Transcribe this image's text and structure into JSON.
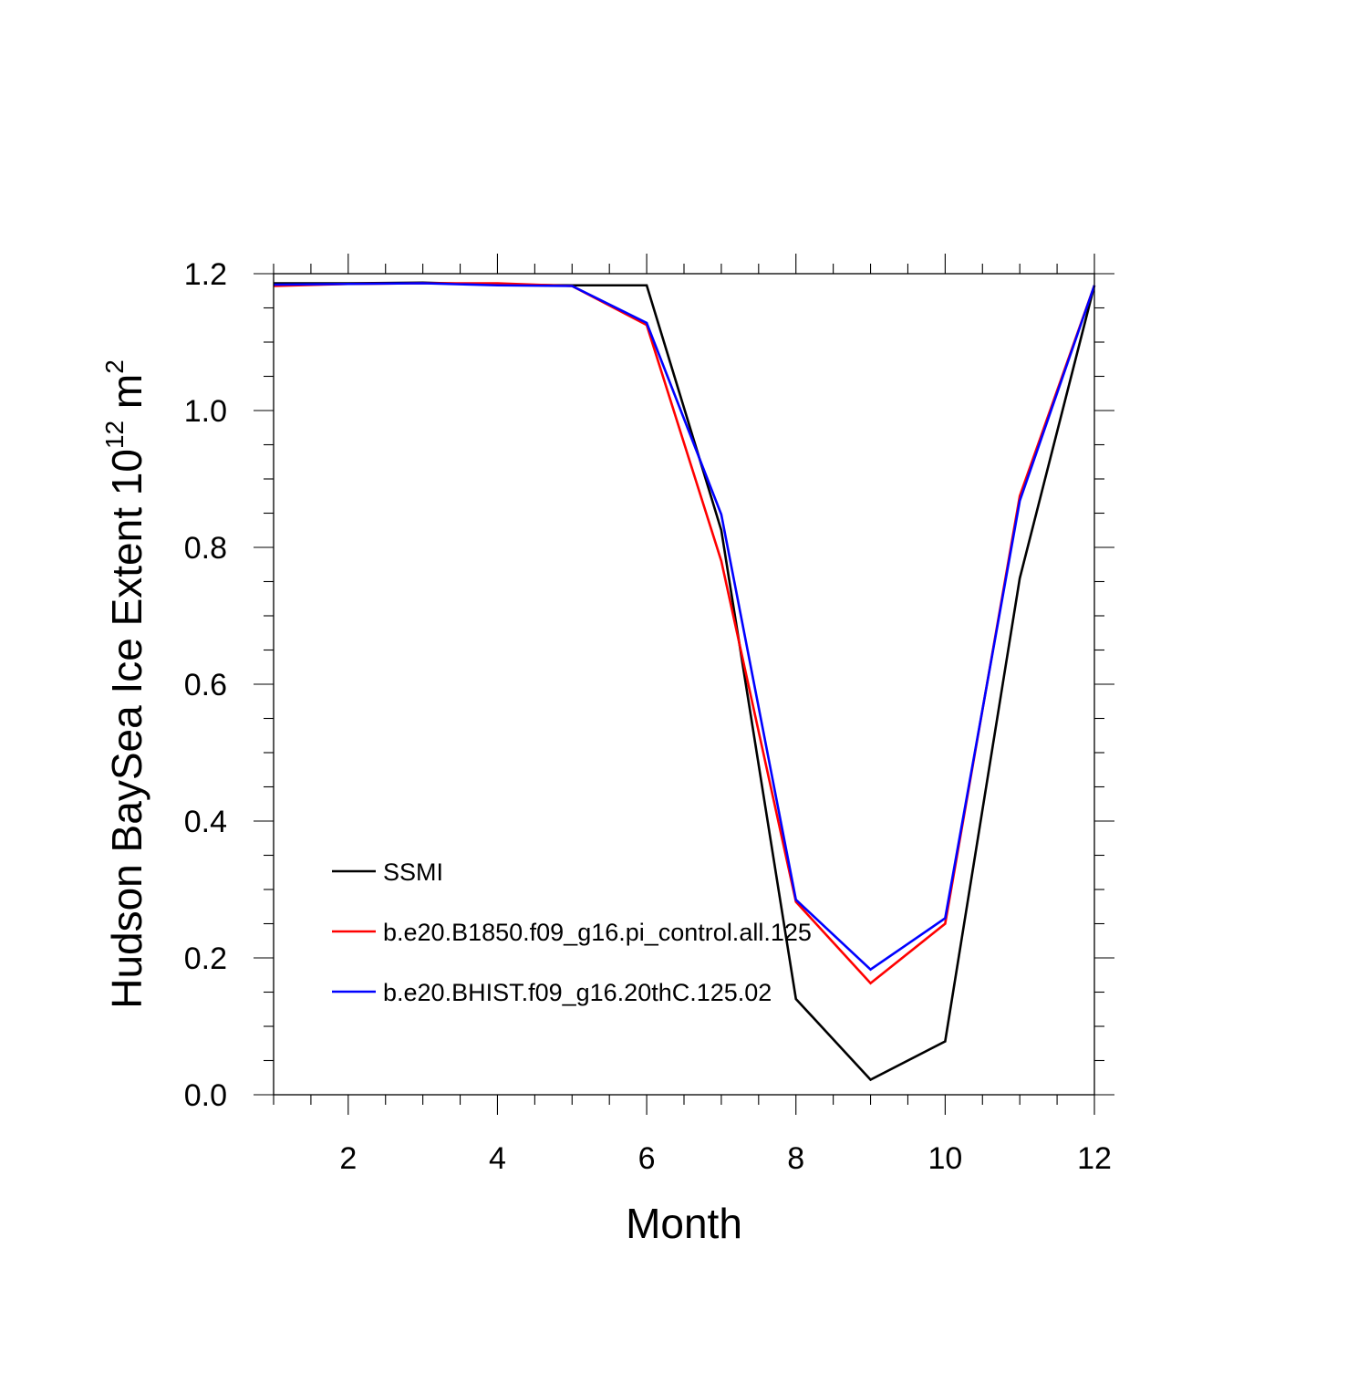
{
  "chart_data": {
    "type": "line",
    "xlabel": "Month",
    "ylabel": {
      "text_before": "Hudson BaySea Ice Extent 10",
      "exponent": "12",
      "text_middle": " m",
      "unit_exponent": "2"
    },
    "xlim": [
      1,
      12
    ],
    "ylim": [
      0.0,
      1.2
    ],
    "x_ticks": [
      2,
      4,
      6,
      8,
      10,
      12
    ],
    "x_tick_labels": [
      "2",
      "4",
      "6",
      "8",
      "10",
      "12"
    ],
    "y_ticks": [
      0.0,
      0.2,
      0.4,
      0.6,
      0.8,
      1.0,
      1.2
    ],
    "y_tick_labels": [
      "0.0",
      "0.2",
      "0.4",
      "0.6",
      "0.8",
      "1.0",
      "1.2"
    ],
    "grid": false,
    "legend_position": "lower-left",
    "x": [
      1,
      2,
      3,
      4,
      5,
      6,
      7,
      8,
      9,
      10,
      11,
      12
    ],
    "series": [
      {
        "name": "SSMI",
        "color": "#000000",
        "values": [
          1.186,
          1.186,
          1.187,
          1.184,
          1.183,
          1.183,
          0.825,
          0.14,
          0.022,
          0.078,
          0.755,
          1.183
        ]
      },
      {
        "name": "b.e20.B1850.f09_g16.pi_control.all.125",
        "color": "#ff0000",
        "values": [
          1.182,
          1.185,
          1.186,
          1.186,
          1.182,
          1.125,
          0.78,
          0.282,
          0.163,
          0.25,
          0.875,
          1.183
        ]
      },
      {
        "name": "b.e20.BHIST.f09_g16.20thC.125.02",
        "color": "#0000ff",
        "values": [
          1.184,
          1.185,
          1.186,
          1.183,
          1.182,
          1.128,
          0.848,
          0.285,
          0.183,
          0.258,
          0.868,
          1.183
        ]
      }
    ]
  }
}
